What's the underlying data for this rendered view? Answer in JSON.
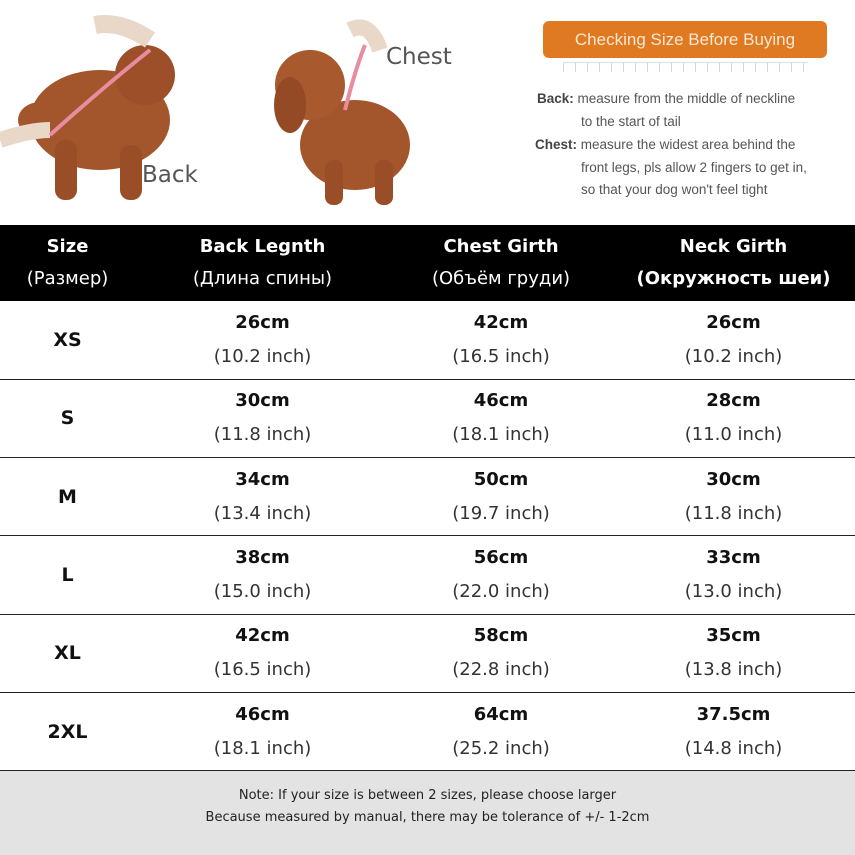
{
  "illustration": {
    "back_label": "Back",
    "chest_label": "Chest",
    "banner": "Checking Size Before Buying",
    "back_term": "Back:",
    "back_desc_1": "measure from the middle of neckline",
    "back_desc_2": "to the start of tail",
    "chest_term": "Chest:",
    "chest_desc_1": "measure the widest area behind the",
    "chest_desc_2": "front legs, pls allow 2 fingers to get in,",
    "chest_desc_3": "so that your dog won't feel tight"
  },
  "table": {
    "headers": [
      {
        "en": "Size",
        "ru": "(Размер)"
      },
      {
        "en": "Back Legnth",
        "ru": "(Длина спины)"
      },
      {
        "en": "Chest Girth",
        "ru": "(Объём груди)"
      },
      {
        "en": "Neck Girth",
        "ru": "(Окружность шеи)"
      }
    ],
    "rows": [
      {
        "size": "XS",
        "back": {
          "cm": "26cm",
          "in": "(10.2 inch)"
        },
        "chest": {
          "cm": "42cm",
          "in": "(16.5 inch)"
        },
        "neck": {
          "cm": "26cm",
          "in": "(10.2 inch)"
        }
      },
      {
        "size": "S",
        "back": {
          "cm": "30cm",
          "in": "(11.8 inch)"
        },
        "chest": {
          "cm": "46cm",
          "in": "(18.1 inch)"
        },
        "neck": {
          "cm": "28cm",
          "in": "(11.0 inch)"
        }
      },
      {
        "size": "M",
        "back": {
          "cm": "34cm",
          "in": "(13.4 inch)"
        },
        "chest": {
          "cm": "50cm",
          "in": "(19.7 inch)"
        },
        "neck": {
          "cm": "30cm",
          "in": "(11.8 inch)"
        }
      },
      {
        "size": "L",
        "back": {
          "cm": "38cm",
          "in": "(15.0 inch)"
        },
        "chest": {
          "cm": "56cm",
          "in": "(22.0 inch)"
        },
        "neck": {
          "cm": "33cm",
          "in": "(13.0 inch)"
        }
      },
      {
        "size": "XL",
        "back": {
          "cm": "42cm",
          "in": "(16.5 inch)"
        },
        "chest": {
          "cm": "58cm",
          "in": "(22.8 inch)"
        },
        "neck": {
          "cm": "35cm",
          "in": "(13.8 inch)"
        }
      },
      {
        "size": "2XL",
        "back": {
          "cm": "46cm",
          "in": "(18.1 inch)"
        },
        "chest": {
          "cm": "64cm",
          "in": "(25.2 inch)"
        },
        "neck": {
          "cm": "37.5cm",
          "in": "(14.8 inch)"
        }
      }
    ]
  },
  "note": {
    "line1": "Note: If your size is between 2 sizes, please choose larger",
    "line2": "Because measured by manual, there may be tolerance of +/- 1-2cm"
  },
  "colors": {
    "banner": "#e07a22",
    "header_bg": "#000000",
    "note_bg": "#e3e3e3",
    "dog": "#a0522d",
    "tape": "#e88ca0"
  }
}
